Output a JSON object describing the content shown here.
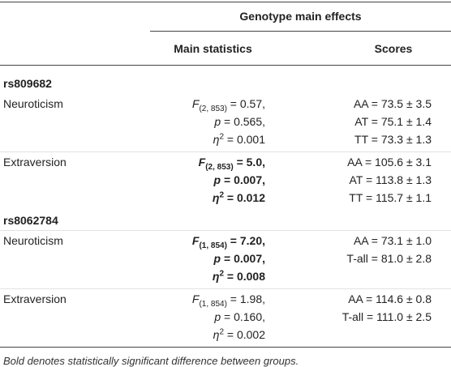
{
  "header": {
    "title": "Genotype main effects",
    "columns": [
      "Main statistics",
      "Scores"
    ]
  },
  "sections": [
    {
      "label": "rs809682",
      "rows": [
        {
          "trait": "Neuroticism",
          "bold": false,
          "stats": [
            {
              "sym": "F",
              "sub": "(2, 853)",
              "rest": " = 0.57,"
            },
            {
              "sym": "p",
              "rest": " = 0.565,"
            },
            {
              "sym": "η",
              "sup": "2",
              "rest": " = 0.001"
            }
          ],
          "scores": [
            "AA = 73.5 ± 3.5",
            "AT = 75.1 ± 1.4",
            "TT = 73.3 ± 1.3"
          ]
        },
        {
          "trait": "Extraversion",
          "bold": true,
          "stats": [
            {
              "sym": "F",
              "sub": "(2, 853)",
              "rest": " = 5.0,"
            },
            {
              "sym": "p",
              "rest": " = 0.007,"
            },
            {
              "sym": "η",
              "sup": "2",
              "rest": " = 0.012"
            }
          ],
          "scores": [
            "AA = 105.6 ± 3.1",
            "AT = 113.8 ± 1.3",
            "TT = 115.7 ± 1.1"
          ]
        }
      ]
    },
    {
      "label": "rs8062784",
      "rows": [
        {
          "trait": "Neuroticism",
          "bold": true,
          "stats": [
            {
              "sym": "F",
              "sub": "(1, 854)",
              "rest": " = 7.20,"
            },
            {
              "sym": "p",
              "rest": " = 0.007,"
            },
            {
              "sym": "η",
              "sup": "2",
              "rest": " = 0.008"
            }
          ],
          "scores": [
            "AA = 73.1 ± 1.0",
            "T-all = 81.0 ± 2.8"
          ]
        },
        {
          "trait": "Extraversion",
          "bold": false,
          "stats": [
            {
              "sym": "F",
              "sub": "(1, 854)",
              "rest": " = 1.98,"
            },
            {
              "sym": "p",
              "rest": " = 0.160,"
            },
            {
              "sym": "η",
              "sup": "2",
              "rest": " = 0.002"
            }
          ],
          "scores": [
            "AA = 114.6 ± 0.8",
            "T-all = 111.0 ± 2.5"
          ]
        }
      ]
    }
  ],
  "footnote": "Bold denotes statistically significant difference between groups."
}
